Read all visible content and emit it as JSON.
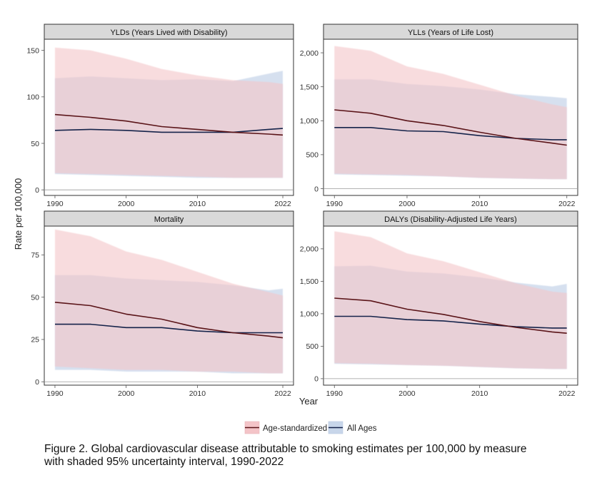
{
  "figure": {
    "caption_line1": "Figure 2. Global cardiovascular disease attributable to smoking estimates per 100,000 by measure",
    "caption_line2": "with shaded 95% uncertainty interval, 1990-2022",
    "ylabel": "Rate per 100,000",
    "xlabel": "Year"
  },
  "legend": {
    "items": [
      {
        "label": "Age-standardized",
        "line_color": "#5a1418",
        "fill_color": "#f4c4c8"
      },
      {
        "label": "All Ages",
        "line_color": "#15234a",
        "fill_color": "#c8d6ea"
      }
    ]
  },
  "colors": {
    "strip_bg": "#d9d9d9",
    "panel_border": "#333333",
    "axis_line": "#555555"
  },
  "chart_data": [
    {
      "type": "area",
      "title": "YLDs (Years Lived with Disability)",
      "xlim": [
        1988.5,
        2023.5
      ],
      "ylim": [
        -6,
        162
      ],
      "xticks": [
        1990,
        2000,
        2010,
        2022
      ],
      "yticks": [
        0,
        50,
        100,
        150
      ],
      "ytick_labels": [
        "0",
        "50",
        "100",
        "150"
      ],
      "x": [
        1990,
        1995,
        2000,
        2005,
        2010,
        2015,
        2020,
        2022
      ],
      "series": [
        {
          "name": "All Ages",
          "values": [
            64,
            65,
            64,
            62,
            62,
            62,
            65,
            66
          ],
          "lower": [
            17,
            16,
            15,
            14,
            13,
            13,
            13,
            13
          ],
          "upper": [
            120,
            122,
            120,
            118,
            119,
            117,
            125,
            128
          ]
        },
        {
          "name": "Age-standardized",
          "values": [
            81,
            78,
            74,
            68,
            65,
            62,
            60,
            59
          ],
          "lower": [
            18,
            17,
            16,
            15,
            14,
            13,
            13,
            13
          ],
          "upper": [
            153,
            150,
            141,
            130,
            123,
            118,
            116,
            114
          ]
        }
      ]
    },
    {
      "type": "area",
      "title": "YLLs (Years of Life Lost)",
      "xlim": [
        1988.5,
        2023.5
      ],
      "ylim": [
        -100,
        2200
      ],
      "xticks": [
        1990,
        2000,
        2010,
        2022
      ],
      "yticks": [
        0,
        500,
        1000,
        1500,
        2000
      ],
      "ytick_labels": [
        "0",
        "500",
        "1,000",
        "1,500",
        "2,000"
      ],
      "x": [
        1990,
        1995,
        2000,
        2005,
        2010,
        2015,
        2020,
        2022
      ],
      "series": [
        {
          "name": "All Ages",
          "values": [
            900,
            900,
            850,
            840,
            780,
            740,
            720,
            720
          ],
          "lower": [
            210,
            200,
            190,
            180,
            160,
            150,
            140,
            140
          ],
          "upper": [
            1610,
            1610,
            1540,
            1510,
            1460,
            1390,
            1350,
            1330
          ]
        },
        {
          "name": "Age-standardized",
          "values": [
            1160,
            1110,
            1000,
            930,
            830,
            740,
            670,
            640
          ],
          "lower": [
            220,
            210,
            200,
            180,
            160,
            150,
            140,
            140
          ],
          "upper": [
            2100,
            2030,
            1800,
            1690,
            1530,
            1370,
            1240,
            1200
          ]
        }
      ]
    },
    {
      "type": "area",
      "title": "Mortality",
      "xlim": [
        1988.5,
        2023.5
      ],
      "ylim": [
        -2,
        92
      ],
      "xticks": [
        1990,
        2000,
        2010,
        2022
      ],
      "yticks": [
        0,
        25,
        50,
        75
      ],
      "ytick_labels": [
        "0",
        "25",
        "50",
        "75"
      ],
      "x": [
        1990,
        1995,
        2000,
        2005,
        2010,
        2015,
        2020,
        2022
      ],
      "series": [
        {
          "name": "All Ages",
          "values": [
            34,
            34,
            32,
            32,
            30,
            29,
            29,
            29
          ],
          "lower": [
            7,
            7,
            6,
            6,
            6,
            5,
            5,
            5
          ],
          "upper": [
            63,
            63,
            61,
            60,
            59,
            57,
            54,
            55
          ]
        },
        {
          "name": "Age-standardized",
          "values": [
            47,
            45,
            40,
            37,
            32,
            29,
            27,
            26
          ],
          "lower": [
            9,
            8,
            7,
            7,
            6,
            6,
            5,
            5
          ],
          "upper": [
            90,
            86,
            77,
            72,
            65,
            58,
            53,
            51
          ]
        }
      ]
    },
    {
      "type": "area",
      "title": "DALYs (Disability-Adjusted Life Years)",
      "xlim": [
        1988.5,
        2023.5
      ],
      "ylim": [
        -100,
        2350
      ],
      "xticks": [
        1990,
        2000,
        2010,
        2022
      ],
      "yticks": [
        0,
        500,
        1000,
        1500,
        2000
      ],
      "ytick_labels": [
        "0",
        "500",
        "1,000",
        "1,500",
        "2,000"
      ],
      "x": [
        1990,
        1995,
        2000,
        2005,
        2010,
        2015,
        2020,
        2022
      ],
      "series": [
        {
          "name": "All Ages",
          "values": [
            960,
            960,
            910,
            890,
            840,
            800,
            780,
            780
          ],
          "lower": [
            230,
            220,
            210,
            200,
            180,
            160,
            150,
            150
          ],
          "upper": [
            1730,
            1740,
            1650,
            1620,
            1560,
            1480,
            1420,
            1460
          ]
        },
        {
          "name": "Age-standardized",
          "values": [
            1240,
            1200,
            1070,
            990,
            880,
            790,
            720,
            700
          ],
          "lower": [
            240,
            230,
            210,
            200,
            180,
            160,
            150,
            150
          ],
          "upper": [
            2270,
            2180,
            1930,
            1810,
            1640,
            1470,
            1340,
            1320
          ]
        }
      ]
    }
  ]
}
